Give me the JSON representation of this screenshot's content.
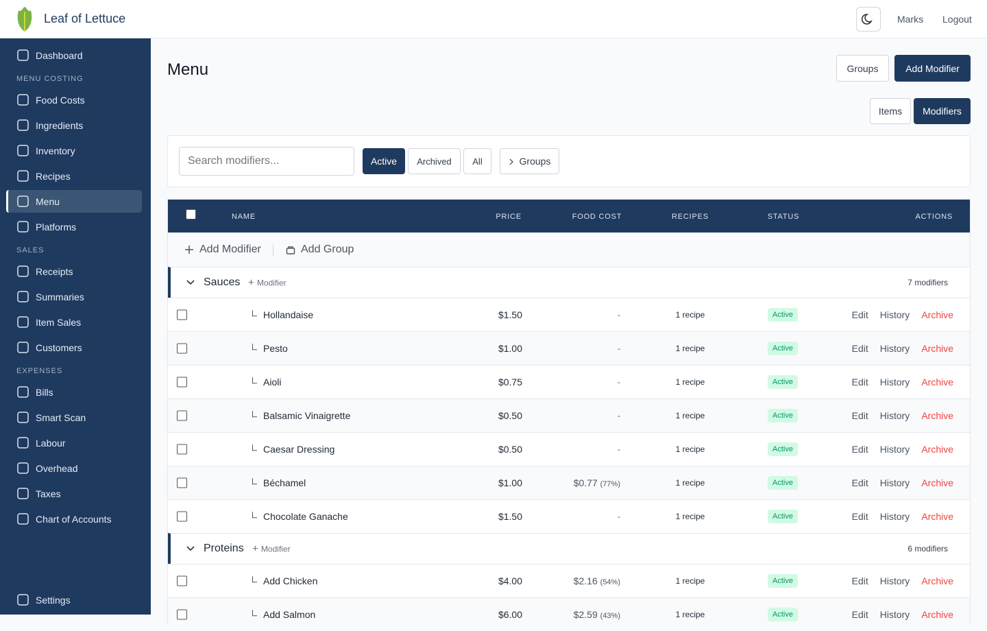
{
  "header": {
    "brand": "Leaf of Lettuce",
    "nav": [
      "Marks",
      "Logout"
    ]
  },
  "sidebar": {
    "top": [
      {
        "label": "Dashboard"
      }
    ],
    "sections": [
      {
        "heading": "MENU COSTING",
        "items": [
          {
            "label": "Food Costs"
          },
          {
            "label": "Ingredients"
          },
          {
            "label": "Inventory"
          },
          {
            "label": "Recipes"
          },
          {
            "label": "Menu",
            "active": true
          },
          {
            "label": "Platforms"
          }
        ]
      },
      {
        "heading": "SALES",
        "items": [
          {
            "label": "Receipts"
          },
          {
            "label": "Summaries"
          },
          {
            "label": "Item Sales"
          },
          {
            "label": "Customers"
          }
        ]
      },
      {
        "heading": "EXPENSES",
        "items": [
          {
            "label": "Bills"
          },
          {
            "label": "Smart Scan"
          },
          {
            "label": "Labour"
          },
          {
            "label": "Overhead"
          },
          {
            "label": "Taxes"
          },
          {
            "label": "Chart of Accounts"
          }
        ]
      }
    ],
    "bottom": "Settings"
  },
  "page": {
    "title": "Menu",
    "buttons": [
      "Groups",
      "Add Modifier"
    ],
    "tabs": [
      "Items",
      "Modifiers"
    ],
    "filters": {
      "search_placeholder": "Search modifiers...",
      "status": [
        "Active",
        "Archived",
        "All"
      ],
      "groups_toggle": "Groups"
    }
  },
  "table": {
    "columns": [
      "NAME",
      "PRICE",
      "FOOD COST",
      "RECIPES",
      "STATUS",
      "ACTIONS"
    ],
    "add_modifier": "Add Modifier",
    "add_group": "Add Group",
    "row_actions": [
      "Edit",
      "History",
      "Archive"
    ],
    "groups": [
      {
        "name": "Sauces",
        "add": "Modifier",
        "count": "7 modifiers",
        "rows": [
          {
            "name": "Hollandaise",
            "price": "$1.50",
            "food_cost": "-",
            "recipes": "1 recipe",
            "status": "Active"
          },
          {
            "name": "Pesto",
            "price": "$1.00",
            "food_cost": "-",
            "recipes": "1 recipe",
            "status": "Active"
          },
          {
            "name": "Aioli",
            "price": "$0.75",
            "food_cost": "-",
            "recipes": "1 recipe",
            "status": "Active"
          },
          {
            "name": "Balsamic Vinaigrette",
            "price": "$0.50",
            "food_cost": "-",
            "recipes": "1 recipe",
            "status": "Active"
          },
          {
            "name": "Caesar Dressing",
            "price": "$0.50",
            "food_cost": "-",
            "recipes": "1 recipe",
            "status": "Active"
          },
          {
            "name": "Béchamel",
            "price": "$1.00",
            "food_cost": "$0.77",
            "food_cost_pct": "(77%)",
            "recipes": "1 recipe",
            "status": "Active"
          },
          {
            "name": "Chocolate Ganache",
            "price": "$1.50",
            "food_cost": "-",
            "recipes": "1 recipe",
            "status": "Active"
          }
        ]
      },
      {
        "name": "Proteins",
        "add": "Modifier",
        "count": "6 modifiers",
        "rows": [
          {
            "name": "Add Chicken",
            "price": "$4.00",
            "food_cost": "$2.16",
            "food_cost_pct": "(54%)",
            "recipes": "1 recipe",
            "status": "Active"
          },
          {
            "name": "Add Salmon",
            "price": "$6.00",
            "food_cost": "$2.59",
            "food_cost_pct": "(43%)",
            "recipes": "1 recipe",
            "status": "Active"
          }
        ]
      }
    ]
  }
}
